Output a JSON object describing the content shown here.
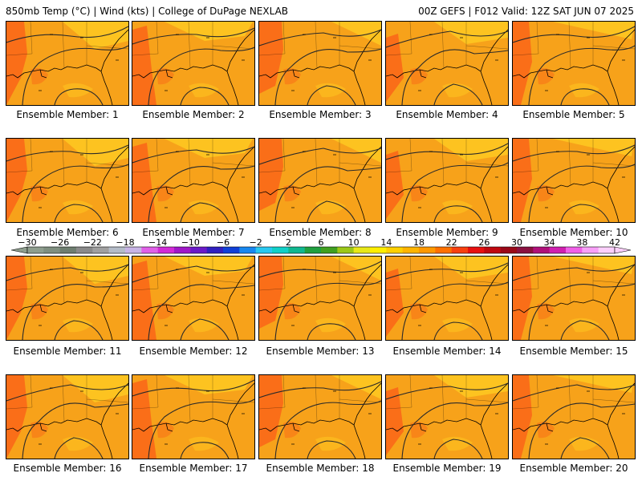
{
  "header": {
    "left": "850mb Temp (°C) | Wind (kts) | College of DuPage NEXLAB",
    "right": "00Z GEFS | F012 Valid: 12Z SAT JUN 07 2025"
  },
  "members": [
    {
      "label": "Ensemble Member: 1"
    },
    {
      "label": "Ensemble Member: 2"
    },
    {
      "label": "Ensemble Member: 3"
    },
    {
      "label": "Ensemble Member: 4"
    },
    {
      "label": "Ensemble Member: 5"
    },
    {
      "label": "Ensemble Member: 6"
    },
    {
      "label": "Ensemble Member: 7"
    },
    {
      "label": "Ensemble Member: 8"
    },
    {
      "label": "Ensemble Member: 9"
    },
    {
      "label": "Ensemble Member: 10"
    },
    {
      "label": "Ensemble Member: 11"
    },
    {
      "label": "Ensemble Member: 12"
    },
    {
      "label": "Ensemble Member: 13"
    },
    {
      "label": "Ensemble Member: 14"
    },
    {
      "label": "Ensemble Member: 15"
    },
    {
      "label": "Ensemble Member: 16"
    },
    {
      "label": "Ensemble Member: 17"
    },
    {
      "label": "Ensemble Member: 18"
    },
    {
      "label": "Ensemble Member: 19"
    },
    {
      "label": "Ensemble Member: 20"
    }
  ],
  "colorbar": {
    "tick_labels": [
      "−30",
      "−26",
      "−22",
      "−18",
      "−14",
      "−10",
      "−6",
      "−2",
      "2",
      "6",
      "10",
      "14",
      "18",
      "22",
      "26",
      "30",
      "34",
      "38",
      "42"
    ],
    "colors": [
      "#8e9e8e",
      "#7f8f80",
      "#6e7e70",
      "#8a8a8a",
      "#a0a0a0",
      "#b4bcc8",
      "#c8b4e6",
      "#e060e8",
      "#d22ad8",
      "#a018c8",
      "#6a1ac8",
      "#3020c0",
      "#1040d8",
      "#1888f0",
      "#28c8f0",
      "#10d0c8",
      "#10b890",
      "#20a040",
      "#40a020",
      "#9cc818",
      "#e8e818",
      "#ffee00",
      "#ffd000",
      "#ffb400",
      "#ff9800",
      "#ff7000",
      "#f84010",
      "#e81010",
      "#c00810",
      "#9a0818",
      "#8a1040",
      "#b0107a",
      "#d020b0",
      "#f060e8",
      "#f8a0f8",
      "#fcd0fc"
    ],
    "field_colors": {
      "warm_background": "#f7a21a",
      "hot_core": "#fa6e18",
      "cool_patch": "#fdc320",
      "contour": "#2a2a2a"
    }
  }
}
